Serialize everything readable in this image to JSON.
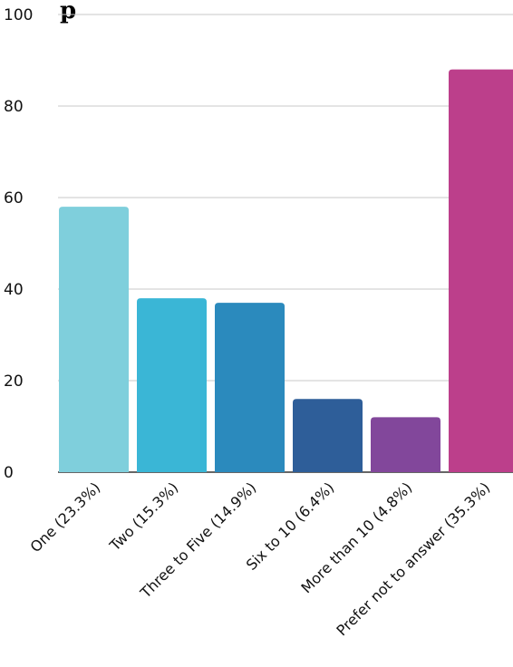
{
  "chart_data": {
    "type": "bar",
    "title_fragment": "p",
    "categories": [
      "One (23.3%)",
      "Two (15.3%)",
      "Three to Five (14.9%)",
      "Six to 10 (6.4%)",
      "More than 10 (4.8%)",
      "Prefer not to answer (35.3%)"
    ],
    "values": [
      58,
      38,
      37,
      16,
      12,
      88
    ],
    "colors": [
      "#7fcfdc",
      "#3ab6d6",
      "#2b8abd",
      "#2e5e99",
      "#82479b",
      "#bc3f8b"
    ],
    "ylim": [
      0,
      100
    ],
    "yticks": [
      0,
      20,
      40,
      60,
      80,
      100
    ],
    "grid": true,
    "legend": "none"
  }
}
